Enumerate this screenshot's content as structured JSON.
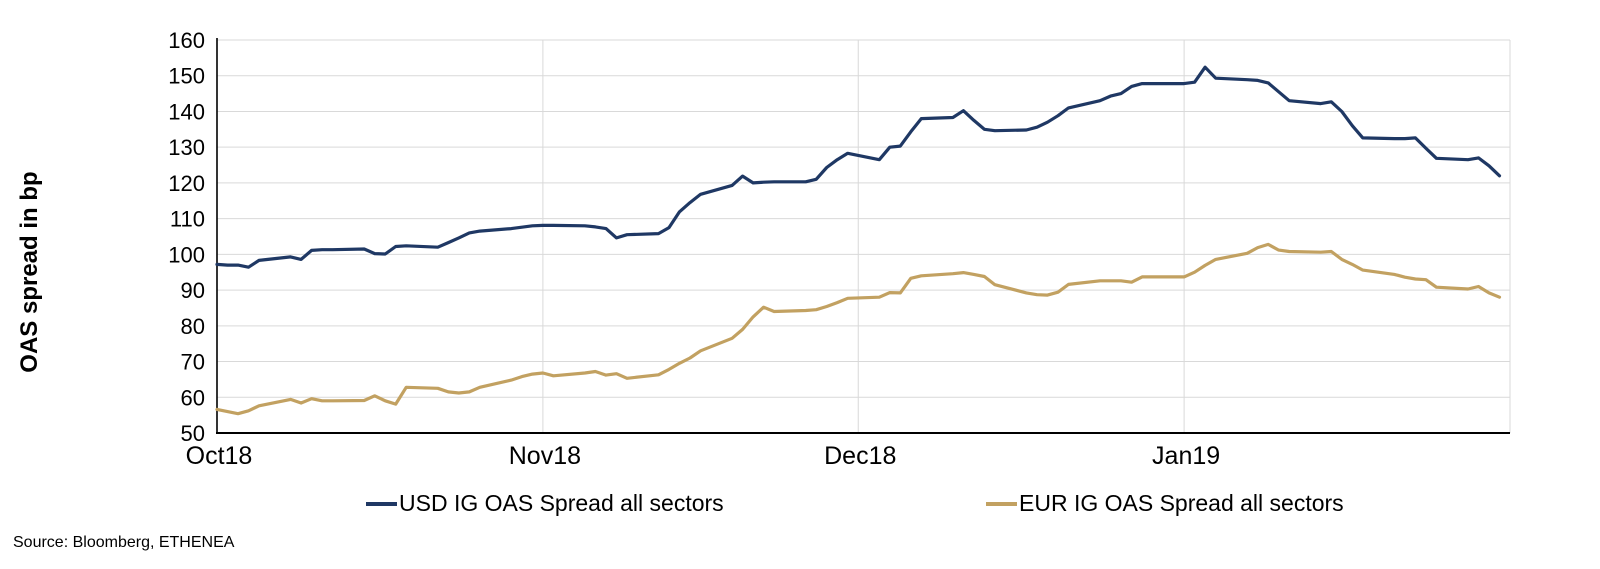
{
  "chart_data": {
    "type": "line",
    "title": "",
    "ylabel": "OAS spread in bp",
    "xlabel": "",
    "ylim": [
      50,
      160
    ],
    "y_ticks": [
      160,
      150,
      140,
      130,
      120,
      110,
      100,
      90,
      80,
      70,
      60,
      50
    ],
    "x_ticks": [
      {
        "label": "Oct18",
        "day": 0
      },
      {
        "label": "Nov18",
        "day": 31
      },
      {
        "label": "Dec18",
        "day": 61
      },
      {
        "label": "Jan19",
        "day": 92
      }
    ],
    "x_domain_days": [
      0,
      123
    ],
    "grid": true,
    "legend_position": "bottom",
    "gridline_color": "#d9d9d9",
    "axis_color": "#000000",
    "x_days": [
      0,
      1,
      2,
      3,
      4,
      7,
      8,
      9,
      10,
      11,
      14,
      15,
      16,
      17,
      18,
      21,
      22,
      23,
      24,
      25,
      28,
      29,
      30,
      31,
      32,
      35,
      36,
      37,
      38,
      39,
      42,
      43,
      44,
      45,
      46,
      49,
      50,
      51,
      52,
      53,
      56,
      57,
      58,
      59,
      60,
      63,
      64,
      65,
      66,
      67,
      70,
      71,
      72,
      73,
      74,
      77,
      78,
      79,
      80,
      81,
      84,
      85,
      86,
      87,
      88,
      91,
      92,
      93,
      94,
      95,
      98,
      99,
      100,
      101,
      102,
      105,
      106,
      107,
      108,
      109,
      112,
      113,
      114,
      115,
      116,
      119,
      120,
      121,
      122
    ],
    "series": [
      {
        "name": "USD IG OAS Spread all sectors",
        "color": "#1F3864",
        "values": [
          97.2,
          97.0,
          97.0,
          96.4,
          98.3,
          99.3,
          98.6,
          101.1,
          101.3,
          101.3,
          101.5,
          100.2,
          100.1,
          102.2,
          102.4,
          102.0,
          103.3,
          104.6,
          106.0,
          106.5,
          107.2,
          107.6,
          108.0,
          108.1,
          108.1,
          108.0,
          107.7,
          107.2,
          104.6,
          105.5,
          105.8,
          107.5,
          111.9,
          114.5,
          116.8,
          119.3,
          121.9,
          120.0,
          120.2,
          120.3,
          120.3,
          121.0,
          124.3,
          126.5,
          128.3,
          126.5,
          130.0,
          130.3,
          134.3,
          138.0,
          138.3,
          140.2,
          137.5,
          135.0,
          134.6,
          134.8,
          135.6,
          137.0,
          138.8,
          141.0,
          143.0,
          144.3,
          145.0,
          147.0,
          147.8,
          147.8,
          147.8,
          148.2,
          152.4,
          149.3,
          148.9,
          148.7,
          148.0,
          145.5,
          143.0,
          142.2,
          142.7,
          140.0,
          136.0,
          132.6,
          132.4,
          132.4,
          132.6,
          129.7,
          126.9,
          126.5,
          127.0,
          124.8,
          122.0
        ]
      },
      {
        "name": "EUR IG OAS Spread all sectors",
        "color": "#C2A161",
        "values": [
          56.6,
          56.0,
          55.4,
          56.2,
          57.6,
          59.4,
          58.4,
          59.6,
          59.0,
          59.0,
          59.1,
          60.4,
          59.0,
          58.1,
          62.8,
          62.5,
          61.5,
          61.2,
          61.5,
          62.8,
          64.8,
          65.8,
          66.5,
          66.8,
          66.0,
          66.8,
          67.2,
          66.2,
          66.6,
          65.3,
          66.3,
          67.8,
          69.5,
          71.0,
          73.0,
          76.5,
          79.0,
          82.5,
          85.2,
          84.0,
          84.3,
          84.5,
          85.4,
          86.5,
          87.7,
          88.0,
          89.3,
          89.2,
          93.3,
          94.0,
          94.6,
          94.9,
          94.4,
          93.8,
          91.5,
          89.2,
          88.7,
          88.6,
          89.4,
          91.6,
          92.6,
          92.6,
          92.6,
          92.2,
          93.7,
          93.7,
          93.7,
          95.0,
          96.9,
          98.6,
          100.3,
          101.9,
          102.8,
          101.2,
          100.8,
          100.6,
          100.8,
          98.6,
          97.2,
          95.6,
          94.4,
          93.6,
          93.1,
          92.9,
          90.8,
          90.3,
          91.0,
          89.2,
          88.0
        ]
      }
    ]
  },
  "source_note": "Source: Bloomberg, ETHENEA"
}
